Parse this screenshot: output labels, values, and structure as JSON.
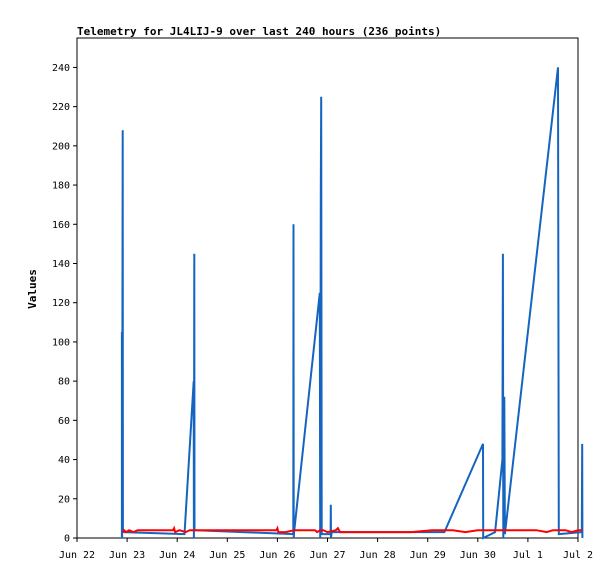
{
  "chart_data": {
    "type": "line",
    "title": "Telemetry for JL4LIJ-9 over last 240 hours (236 points)",
    "ylabel": "Values",
    "xlabel": "",
    "ylim": [
      0,
      255
    ],
    "xlim": [
      0,
      240
    ],
    "x_ticks": [
      {
        "x": 0,
        "label": "Jun 22"
      },
      {
        "x": 24,
        "label": "Jun 23"
      },
      {
        "x": 48,
        "label": "Jun 24"
      },
      {
        "x": 72,
        "label": "Jun 25"
      },
      {
        "x": 96,
        "label": "Jun 26"
      },
      {
        "x": 120,
        "label": "Jun 27"
      },
      {
        "x": 144,
        "label": "Jun 28"
      },
      {
        "x": 168,
        "label": "Jun 29"
      },
      {
        "x": 192,
        "label": "Jun 30"
      },
      {
        "x": 216,
        "label": "Jul 1"
      },
      {
        "x": 240,
        "label": "Jul 2"
      }
    ],
    "y_ticks": [
      0,
      20,
      40,
      60,
      80,
      100,
      120,
      140,
      160,
      180,
      200,
      220,
      240
    ],
    "grid": false,
    "series": [
      {
        "color": "#1565c0",
        "points": [
          [
            21.5,
            0
          ],
          [
            21.5,
            105
          ],
          [
            21.6,
            0
          ],
          [
            21.9,
            208
          ],
          [
            22.0,
            4
          ],
          [
            22.5,
            3
          ],
          [
            51.5,
            2
          ],
          [
            55.9,
            80
          ],
          [
            56.0,
            0
          ],
          [
            56.2,
            145
          ],
          [
            56.3,
            4
          ],
          [
            103.6,
            2
          ],
          [
            103.7,
            160
          ],
          [
            103.8,
            0
          ],
          [
            104.0,
            3
          ],
          [
            116.3,
            125
          ],
          [
            116.5,
            0
          ],
          [
            116.8,
            177
          ],
          [
            117.0,
            225
          ],
          [
            117.2,
            2
          ],
          [
            121.5,
            2
          ],
          [
            121.6,
            17
          ],
          [
            121.7,
            0
          ],
          [
            122.0,
            3
          ],
          [
            176.0,
            3
          ],
          [
            194.5,
            48
          ],
          [
            194.6,
            0
          ],
          [
            200.3,
            3
          ],
          [
            203.8,
            40
          ],
          [
            204.0,
            145
          ],
          [
            204.2,
            0
          ],
          [
            204.7,
            72
          ],
          [
            205.0,
            2
          ],
          [
            230.4,
            240
          ],
          [
            230.6,
            120
          ],
          [
            230.8,
            2
          ],
          [
            241.8,
            3
          ],
          [
            242.0,
            48
          ],
          [
            242.1,
            0
          ]
        ]
      },
      {
        "color": "#ff0000",
        "points": [
          [
            22.0,
            3
          ],
          [
            22.5,
            4
          ],
          [
            23.5,
            3
          ],
          [
            25.0,
            4
          ],
          [
            27.0,
            3
          ],
          [
            29.0,
            4
          ],
          [
            33.0,
            4
          ],
          [
            40.0,
            4
          ],
          [
            46.0,
            4
          ],
          [
            46.5,
            5
          ],
          [
            47.0,
            3
          ],
          [
            49.0,
            4
          ],
          [
            52.0,
            3
          ],
          [
            54.0,
            4
          ],
          [
            60.0,
            4
          ],
          [
            70.0,
            4
          ],
          [
            80.0,
            4
          ],
          [
            90.0,
            4
          ],
          [
            95.5,
            4
          ],
          [
            96.0,
            5
          ],
          [
            96.5,
            3
          ],
          [
            100.0,
            3
          ],
          [
            104.0,
            4
          ],
          [
            110.0,
            4
          ],
          [
            114.0,
            4
          ],
          [
            115.0,
            3
          ],
          [
            116.5,
            4
          ],
          [
            118.0,
            4
          ],
          [
            120.0,
            3
          ],
          [
            124.0,
            4
          ],
          [
            125.0,
            5
          ],
          [
            126.0,
            3
          ],
          [
            128.0,
            3
          ],
          [
            140.0,
            3
          ],
          [
            150.0,
            3
          ],
          [
            160.0,
            3
          ],
          [
            170.0,
            4
          ],
          [
            175.0,
            4
          ],
          [
            180.0,
            4
          ],
          [
            186.0,
            3
          ],
          [
            192.0,
            4
          ],
          [
            200.0,
            4
          ],
          [
            210.0,
            4
          ],
          [
            220.0,
            4
          ],
          [
            225.0,
            3
          ],
          [
            228.0,
            4
          ],
          [
            234.0,
            4
          ],
          [
            237.0,
            3
          ],
          [
            240.0,
            4
          ],
          [
            242.0,
            4
          ]
        ]
      }
    ]
  }
}
